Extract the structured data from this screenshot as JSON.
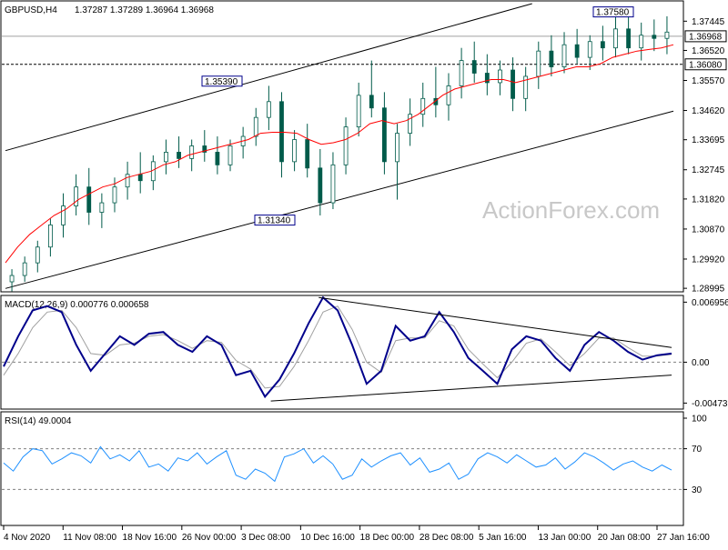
{
  "chart_data": [
    {
      "type": "candlestick",
      "panel": "price",
      "header": {
        "symbol": "GBPUSD,H4",
        "ohlc_text": "1.37287 1.37289 1.36964 1.36968",
        "open": 1.37287,
        "high": 1.37289,
        "low": 1.36964,
        "close": 1.36968
      },
      "y_ticks": [
        "1.37445",
        "1.36520",
        "1.35570",
        "1.34620",
        "1.33695",
        "1.32745",
        "1.31820",
        "1.30870",
        "1.29920",
        "1.28995"
      ],
      "ylim": [
        1.2897,
        1.38
      ],
      "price_markers": {
        "last_price": "1.36968",
        "reference_level": "1.36080"
      },
      "annotations": [
        {
          "text": "1.35390",
          "value": 1.3539
        },
        {
          "text": "1.31340",
          "value": 1.3134
        },
        {
          "text": "1.37580",
          "value": 1.3758
        }
      ],
      "moving_average_path": [
        1.298,
        1.303,
        1.307,
        1.31,
        1.313,
        1.315,
        1.318,
        1.32,
        1.322,
        1.323,
        1.325,
        1.326,
        1.327,
        1.329,
        1.33,
        1.332,
        1.333,
        1.334,
        1.335,
        1.336,
        1.337,
        1.339,
        1.3393,
        1.3393,
        1.339,
        1.337,
        1.3355,
        1.336,
        1.337,
        1.339,
        1.342,
        1.343,
        1.342,
        1.343,
        1.345,
        1.348,
        1.351,
        1.353,
        1.354,
        1.355,
        1.356,
        1.356,
        1.355,
        1.356,
        1.357,
        1.358,
        1.359,
        1.36,
        1.36,
        1.361,
        1.363,
        1.364,
        1.365,
        1.3655,
        1.366,
        1.367
      ],
      "ohlc_series": [
        [
          1.292,
          1.296,
          1.289,
          1.294
        ],
        [
          1.294,
          1.3,
          1.292,
          1.298
        ],
        [
          1.298,
          1.305,
          1.295,
          1.303
        ],
        [
          1.303,
          1.312,
          1.3,
          1.31
        ],
        [
          1.31,
          1.32,
          1.306,
          1.316
        ],
        [
          1.316,
          1.326,
          1.313,
          1.322
        ],
        [
          1.322,
          1.328,
          1.31,
          1.314
        ],
        [
          1.314,
          1.32,
          1.309,
          1.317
        ],
        [
          1.317,
          1.325,
          1.314,
          1.322
        ],
        [
          1.322,
          1.33,
          1.318,
          1.326
        ],
        [
          1.326,
          1.333,
          1.32,
          1.324
        ],
        [
          1.324,
          1.332,
          1.321,
          1.33
        ],
        [
          1.33,
          1.337,
          1.326,
          1.333
        ],
        [
          1.333,
          1.338,
          1.328,
          1.331
        ],
        [
          1.331,
          1.337,
          1.327,
          1.335
        ],
        [
          1.335,
          1.34,
          1.33,
          1.333
        ],
        [
          1.333,
          1.338,
          1.326,
          1.329
        ],
        [
          1.329,
          1.337,
          1.327,
          1.335
        ],
        [
          1.335,
          1.341,
          1.331,
          1.338
        ],
        [
          1.338,
          1.347,
          1.335,
          1.344
        ],
        [
          1.344,
          1.354,
          1.34,
          1.349
        ],
        [
          1.349,
          1.352,
          1.325,
          1.33
        ],
        [
          1.33,
          1.34,
          1.327,
          1.337
        ],
        [
          1.337,
          1.342,
          1.325,
          1.328
        ],
        [
          1.328,
          1.334,
          1.313,
          1.317
        ],
        [
          1.317,
          1.333,
          1.315,
          1.329
        ],
        [
          1.329,
          1.344,
          1.326,
          1.341
        ],
        [
          1.341,
          1.355,
          1.338,
          1.351
        ],
        [
          1.351,
          1.362,
          1.344,
          1.347
        ],
        [
          1.347,
          1.352,
          1.326,
          1.33
        ],
        [
          1.33,
          1.342,
          1.318,
          1.339
        ],
        [
          1.339,
          1.35,
          1.335,
          1.345
        ],
        [
          1.345,
          1.355,
          1.341,
          1.35
        ],
        [
          1.35,
          1.36,
          1.344,
          1.348
        ],
        [
          1.348,
          1.358,
          1.343,
          1.354
        ],
        [
          1.354,
          1.366,
          1.35,
          1.362
        ],
        [
          1.362,
          1.368,
          1.355,
          1.358
        ],
        [
          1.358,
          1.364,
          1.351,
          1.355
        ],
        [
          1.355,
          1.362,
          1.351,
          1.359
        ],
        [
          1.359,
          1.363,
          1.346,
          1.35
        ],
        [
          1.35,
          1.36,
          1.346,
          1.357
        ],
        [
          1.357,
          1.368,
          1.353,
          1.365
        ],
        [
          1.365,
          1.37,
          1.357,
          1.36
        ],
        [
          1.36,
          1.371,
          1.358,
          1.367
        ],
        [
          1.367,
          1.372,
          1.361,
          1.363
        ],
        [
          1.363,
          1.37,
          1.359,
          1.368
        ],
        [
          1.368,
          1.373,
          1.362,
          1.366
        ],
        [
          1.366,
          1.376,
          1.363,
          1.372
        ],
        [
          1.372,
          1.377,
          1.364,
          1.366
        ],
        [
          1.366,
          1.374,
          1.362,
          1.37
        ],
        [
          1.37,
          1.375,
          1.365,
          1.369
        ],
        [
          1.369,
          1.376,
          1.364,
          1.371
        ]
      ],
      "channel_lines": [
        {
          "from_index": 0,
          "from_value": 1.3335,
          "to_index": 40.5,
          "to_value": 1.38
        },
        {
          "from_index": 0,
          "from_value": 1.2899,
          "to_index": 51.5,
          "to_value": 1.346
        }
      ],
      "watermark": "ActionForex.com"
    },
    {
      "type": "line",
      "panel": "macd",
      "title": "MACD(12,26,9) 0.000776 0.000658",
      "y_ticks": [
        "0.006956",
        "0.00",
        "-0.004736"
      ],
      "ylim": [
        -0.0048,
        0.0071
      ],
      "series": [
        {
          "role": "main",
          "color": "#00008b",
          "values": [
            -0.0005,
            0.003,
            0.006,
            0.0065,
            0.0058,
            0.002,
            -0.001,
            0.001,
            0.003,
            0.002,
            0.0033,
            0.0035,
            0.002,
            0.0012,
            0.003,
            0.002,
            -0.0015,
            -0.001,
            -0.004,
            -0.002,
            0.001,
            0.0045,
            0.0075,
            0.006,
            0.002,
            -0.0025,
            -0.001,
            0.0042,
            0.0025,
            0.003,
            0.0058,
            0.0035,
            0.0005,
            -0.001,
            -0.0025,
            0.0015,
            0.003,
            0.0025,
            0.0005,
            -0.001,
            0.002,
            0.0035,
            0.0025,
            0.0012,
            0.0003,
            0.0008,
            0.001
          ]
        },
        {
          "role": "signal",
          "color": "#a0a0a0",
          "values": [
            -0.0015,
            0.001,
            0.004,
            0.0058,
            0.006,
            0.004,
            0.001,
            0.0008,
            0.002,
            0.0022,
            0.003,
            0.0032,
            0.0025,
            0.0016,
            0.0025,
            0.0023,
            0.0002,
            -0.0008,
            -0.003,
            -0.0028,
            -0.0005,
            0.0025,
            0.0058,
            0.0065,
            0.0038,
            0.0,
            -0.0012,
            0.0025,
            0.0028,
            0.0028,
            0.0048,
            0.0042,
            0.0015,
            -0.0002,
            -0.0018,
            0.0,
            0.0022,
            0.0027,
            0.0012,
            -0.0004,
            0.001,
            0.0028,
            0.0028,
            0.0017,
            0.0007,
            0.0007,
            0.0009
          ]
        }
      ],
      "trendlines": [
        {
          "from_index": 21.7,
          "from_value": 0.0075,
          "to_index": 46,
          "to_value": 0.0017
        },
        {
          "from_index": 18.4,
          "from_value": -0.0045,
          "to_index": 46,
          "to_value": -0.0015
        }
      ]
    },
    {
      "type": "line",
      "panel": "rsi",
      "title": "RSI(14) 49.0004",
      "y_ticks": [
        "100",
        "70",
        "30"
      ],
      "ylim": [
        0,
        100
      ],
      "levels": [
        70,
        30
      ],
      "series": [
        {
          "role": "rsi",
          "color": "#1e90ff",
          "values": [
            56,
            48,
            62,
            70,
            68,
            55,
            60,
            66,
            63,
            56,
            72,
            60,
            64,
            58,
            68,
            52,
            55,
            48,
            61,
            58,
            66,
            55,
            62,
            68,
            44,
            40,
            50,
            46,
            38,
            62,
            65,
            70,
            56,
            63,
            55,
            40,
            44,
            60,
            52,
            58,
            63,
            66,
            54,
            61,
            47,
            50,
            56,
            40,
            45,
            60,
            66,
            62,
            56,
            64,
            58,
            52,
            54,
            61,
            50,
            57,
            66,
            62,
            56,
            49,
            55,
            58,
            52,
            48,
            54,
            49
          ]
        }
      ]
    }
  ],
  "x_axis": {
    "tick_labels": [
      "4 Nov 2020",
      "11 Nov 08:00",
      "18 Nov 16:00",
      "26 Nov 00:00",
      "3 Dec 08:00",
      "10 Dec 16:00",
      "18 Dec 00:00",
      "28 Dec 08:00",
      "5 Jan 16:00",
      "13 Jan 00:00",
      "20 Jan 08:00",
      "27 Jan 16:00"
    ]
  },
  "colors": {
    "bull_bear_candle": "#005b4a",
    "moving_average": "#ff0000",
    "macd_line": "#00008b",
    "signal_line": "#a0a0a0",
    "rsi_line": "#1e90ff",
    "trendline": "#000000",
    "grid_dash": "#808080",
    "label_box_border": "#00008b"
  }
}
